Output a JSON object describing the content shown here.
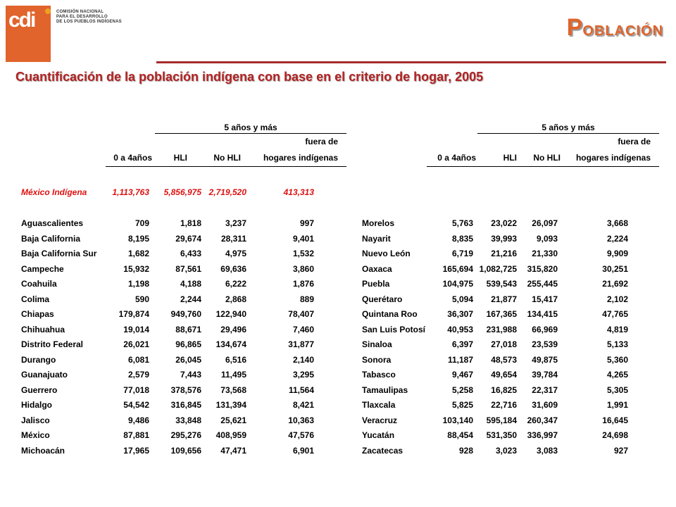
{
  "header": {
    "logo_text": "cdi",
    "org_line1": "COMISIÓN NACIONAL",
    "org_line2": "PARA EL DESARROLLO",
    "org_line3": "DE LOS PUEBLOS INDÍGENAS",
    "section_initial": "P",
    "section_rest": "OBLACIÓN"
  },
  "title": "Cuantificación de la población indígena con base en el criterio de hogar, 2005",
  "colors": {
    "accent": "#e0642c",
    "title_red": "#b22222",
    "national_red": "#dd1111",
    "rule": "#a52a2a"
  },
  "table_headers": {
    "group_label": "5 años y más",
    "col1": "0 a 4años",
    "col2": "HLI",
    "col3": "No HLI",
    "col4_line1": "fuera de",
    "col4_line2": "hogares indígenas"
  },
  "national": {
    "name": "México Indígena",
    "v1": "1,113,763",
    "v2": "5,856,975",
    "v3": "2,719,520",
    "v4": "413,313"
  },
  "left_rows": [
    {
      "name": "Aguascalientes",
      "v1": "709",
      "v2": "1,818",
      "v3": "3,237",
      "v4": "997"
    },
    {
      "name": "Baja California",
      "v1": "8,195",
      "v2": "29,674",
      "v3": "28,311",
      "v4": "9,401"
    },
    {
      "name": "Baja California Sur",
      "v1": "1,682",
      "v2": "6,433",
      "v3": "4,975",
      "v4": "1,532"
    },
    {
      "name": "Campeche",
      "v1": "15,932",
      "v2": "87,561",
      "v3": "69,636",
      "v4": "3,860"
    },
    {
      "name": "Coahuila",
      "v1": "1,198",
      "v2": "4,188",
      "v3": "6,222",
      "v4": "1,876"
    },
    {
      "name": "Colima",
      "v1": "590",
      "v2": "2,244",
      "v3": "2,868",
      "v4": "889"
    },
    {
      "name": "Chiapas",
      "v1": "179,874",
      "v2": "949,760",
      "v3": "122,940",
      "v4": "78,407"
    },
    {
      "name": "Chihuahua",
      "v1": "19,014",
      "v2": "88,671",
      "v3": "29,496",
      "v4": "7,460"
    },
    {
      "name": "Distrito Federal",
      "v1": "26,021",
      "v2": "96,865",
      "v3": "134,674",
      "v4": "31,877"
    },
    {
      "name": "Durango",
      "v1": "6,081",
      "v2": "26,045",
      "v3": "6,516",
      "v4": "2,140"
    },
    {
      "name": "Guanajuato",
      "v1": "2,579",
      "v2": "7,443",
      "v3": "11,495",
      "v4": "3,295"
    },
    {
      "name": "Guerrero",
      "v1": "77,018",
      "v2": "378,576",
      "v3": "73,568",
      "v4": "11,564"
    },
    {
      "name": "Hidalgo",
      "v1": "54,542",
      "v2": "316,845",
      "v3": "131,394",
      "v4": "8,421"
    },
    {
      "name": "Jalisco",
      "v1": "9,486",
      "v2": "33,848",
      "v3": "25,621",
      "v4": "10,363"
    },
    {
      "name": "México",
      "v1": "87,881",
      "v2": "295,276",
      "v3": "408,959",
      "v4": "47,576"
    },
    {
      "name": "Michoacán",
      "v1": "17,965",
      "v2": "109,656",
      "v3": "47,471",
      "v4": "6,901"
    }
  ],
  "right_rows": [
    {
      "name": "Morelos",
      "v1": "5,763",
      "v2": "23,022",
      "v3": "26,097",
      "v4": "3,668"
    },
    {
      "name": "Nayarit",
      "v1": "8,835",
      "v2": "39,993",
      "v3": "9,093",
      "v4": "2,224"
    },
    {
      "name": "Nuevo León",
      "v1": "6,719",
      "v2": "21,216",
      "v3": "21,330",
      "v4": "9,909"
    },
    {
      "name": "Oaxaca",
      "v1": "165,694",
      "v2": "1,082,725",
      "v3": "315,820",
      "v4": "30,251"
    },
    {
      "name": "Puebla",
      "v1": "104,975",
      "v2": "539,543",
      "v3": "255,445",
      "v4": "21,692"
    },
    {
      "name": "Querétaro",
      "v1": "5,094",
      "v2": "21,877",
      "v3": "15,417",
      "v4": "2,102"
    },
    {
      "name": "Quintana Roo",
      "v1": "36,307",
      "v2": "167,365",
      "v3": "134,415",
      "v4": "47,765"
    },
    {
      "name": "San Luis Potosí",
      "v1": "40,953",
      "v2": "231,988",
      "v3": "66,969",
      "v4": "4,819"
    },
    {
      "name": "Sinaloa",
      "v1": "6,397",
      "v2": "27,018",
      "v3": "23,539",
      "v4": "5,133"
    },
    {
      "name": "Sonora",
      "v1": "11,187",
      "v2": "48,573",
      "v3": "49,875",
      "v4": "5,360"
    },
    {
      "name": "Tabasco",
      "v1": "9,467",
      "v2": "49,654",
      "v3": "39,784",
      "v4": "4,265"
    },
    {
      "name": "Tamaulipas",
      "v1": "5,258",
      "v2": "16,825",
      "v3": "22,317",
      "v4": "5,305"
    },
    {
      "name": "Tlaxcala",
      "v1": "5,825",
      "v2": "22,716",
      "v3": "31,609",
      "v4": "1,991"
    },
    {
      "name": "Veracruz",
      "v1": "103,140",
      "v2": "595,184",
      "v3": "260,347",
      "v4": "16,645"
    },
    {
      "name": "Yucatán",
      "v1": "88,454",
      "v2": "531,350",
      "v3": "336,997",
      "v4": "24,698"
    },
    {
      "name": "Zacatecas",
      "v1": "928",
      "v2": "3,023",
      "v3": "3,083",
      "v4": "927"
    }
  ]
}
